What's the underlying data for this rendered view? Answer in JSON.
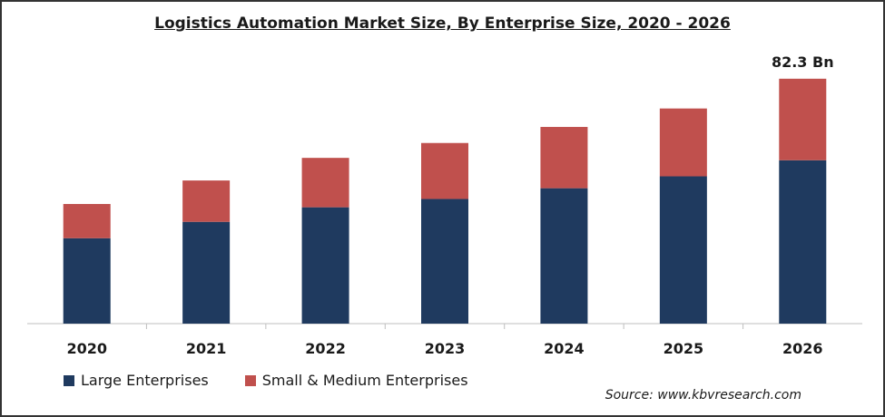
{
  "colors": {
    "large": "#1f3a5f",
    "small_medium": "#c0504d",
    "axis": "#bfbfbf",
    "text": "#1a1a1a"
  },
  "source_text": "Source: www.kbvresearch.com",
  "chart_data": {
    "type": "bar",
    "stacked": true,
    "title": "Logistics Automation Market Size, By Enterprise Size, 2020 - 2026",
    "xlabel": "",
    "ylabel": "",
    "categories": [
      "2020",
      "2021",
      "2022",
      "2023",
      "2024",
      "2025",
      "2026"
    ],
    "series": [
      {
        "name": "Large Enterprises",
        "values": [
          28.7,
          34.2,
          39.1,
          41.9,
          45.5,
          49.5,
          54.9
        ]
      },
      {
        "name": "Small & Medium Enterprises",
        "values": [
          11.5,
          13.9,
          16.6,
          18.8,
          20.6,
          22.8,
          27.4
        ]
      }
    ],
    "data_labels": [
      {
        "category": "2026",
        "text": "82.3 Bn"
      }
    ],
    "ylim": [
      0,
      92
    ],
    "grid": false,
    "legend_position": "bottom-left"
  }
}
